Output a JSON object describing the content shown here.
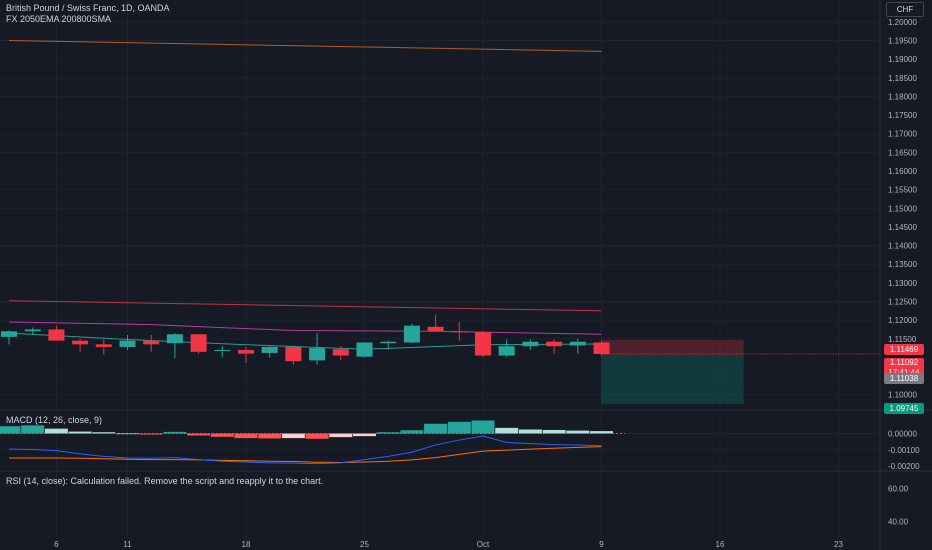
{
  "header": {
    "title": "British Pound / Swiss Franc, 1D, OANDA",
    "indicators": "FX 2050EMA 200800SMA",
    "currency": "CHF"
  },
  "panes": {
    "macd_label": "MACD (12, 26, close, 9)",
    "rsi_label": "RSI (14, close): Calculation failed. Remove the script and reapply it to the chart."
  },
  "price_tags": {
    "upper": "1.11469",
    "last": "1.11092",
    "countdown": "17:41:44",
    "lower": "1.11038",
    "target": "1.09745"
  },
  "colors": {
    "background": "#161a25",
    "up": "#26a69a",
    "down": "#f23645",
    "ema_slow": "#b25e1e",
    "ma_red": "#c2344a",
    "ma_pink": "#b23ea0",
    "ma_teal": "#2a9d95",
    "macd_line": "#2962ff",
    "signal_line": "#ff6d00",
    "hist_up_strong": "#26a69a",
    "hist_up_weak": "#b2dfdb",
    "hist_down_strong": "#ff5252",
    "hist_down_weak": "#ffcdd2"
  },
  "chart_data": {
    "type": "candlestick",
    "title": "British Pound / Swiss Franc, 1D, OANDA",
    "ylim": [
      1.0975,
      1.2005
    ],
    "y_ticks": [
      "1.20000",
      "1.19500",
      "1.19000",
      "1.18500",
      "1.18000",
      "1.17500",
      "1.17000",
      "1.16500",
      "1.16000",
      "1.15500",
      "1.15000",
      "1.14500",
      "1.14000",
      "1.13500",
      "1.13000",
      "1.12500",
      "1.12000",
      "1.11500",
      "1.10500",
      "1.10000"
    ],
    "x_ticks": [
      "6",
      "11",
      "18",
      "25",
      "Oct",
      "9",
      "16",
      "23"
    ],
    "x_tick_index": [
      2,
      5,
      10,
      15,
      20,
      25,
      30,
      35
    ],
    "x_range": [
      0,
      36
    ],
    "candles": [
      {
        "i": 0,
        "o": 1.1155,
        "h": 1.1172,
        "l": 1.1135,
        "c": 1.117
      },
      {
        "i": 1,
        "o": 1.117,
        "h": 1.118,
        "l": 1.116,
        "c": 1.1175
      },
      {
        "i": 2,
        "o": 1.1175,
        "h": 1.1185,
        "l": 1.1148,
        "c": 1.1145
      },
      {
        "i": 3,
        "o": 1.1145,
        "h": 1.115,
        "l": 1.1115,
        "c": 1.1135
      },
      {
        "i": 4,
        "o": 1.1135,
        "h": 1.1148,
        "l": 1.1108,
        "c": 1.1128
      },
      {
        "i": 5,
        "o": 1.1128,
        "h": 1.116,
        "l": 1.112,
        "c": 1.1145
      },
      {
        "i": 6,
        "o": 1.1145,
        "h": 1.116,
        "l": 1.1115,
        "c": 1.1135
      },
      {
        "i": 7,
        "o": 1.1138,
        "h": 1.1165,
        "l": 1.1098,
        "c": 1.1162
      },
      {
        "i": 8,
        "o": 1.1162,
        "h": 1.1163,
        "l": 1.111,
        "c": 1.1115
      },
      {
        "i": 9,
        "o": 1.1118,
        "h": 1.113,
        "l": 1.11,
        "c": 1.112
      },
      {
        "i": 10,
        "o": 1.112,
        "h": 1.1128,
        "l": 1.1085,
        "c": 1.111
      },
      {
        "i": 11,
        "o": 1.1112,
        "h": 1.113,
        "l": 1.11,
        "c": 1.1128
      },
      {
        "i": 12,
        "o": 1.1128,
        "h": 1.1132,
        "l": 1.108,
        "c": 1.109
      },
      {
        "i": 13,
        "o": 1.1092,
        "h": 1.1165,
        "l": 1.108,
        "c": 1.1125
      },
      {
        "i": 14,
        "o": 1.1122,
        "h": 1.113,
        "l": 1.1092,
        "c": 1.1105
      },
      {
        "i": 15,
        "o": 1.1102,
        "h": 1.114,
        "l": 1.11,
        "c": 1.114
      },
      {
        "i": 16,
        "o": 1.1138,
        "h": 1.1145,
        "l": 1.112,
        "c": 1.1142
      },
      {
        "i": 17,
        "o": 1.114,
        "h": 1.119,
        "l": 1.1138,
        "c": 1.1185
      },
      {
        "i": 18,
        "o": 1.1182,
        "h": 1.1215,
        "l": 1.1168,
        "c": 1.117
      },
      {
        "i": 19,
        "o": 1.117,
        "h": 1.1195,
        "l": 1.1145,
        "c": 1.1168
      },
      {
        "i": 20,
        "o": 1.1168,
        "h": 1.117,
        "l": 1.11,
        "c": 1.1105
      },
      {
        "i": 21,
        "o": 1.1105,
        "h": 1.1148,
        "l": 1.11,
        "c": 1.113
      },
      {
        "i": 22,
        "o": 1.113,
        "h": 1.1148,
        "l": 1.112,
        "c": 1.1142
      },
      {
        "i": 23,
        "o": 1.1142,
        "h": 1.1148,
        "l": 1.111,
        "c": 1.113
      },
      {
        "i": 24,
        "o": 1.1132,
        "h": 1.115,
        "l": 1.111,
        "c": 1.1142
      },
      {
        "i": 25,
        "o": 1.114,
        "h": 1.1145,
        "l": 1.1104,
        "c": 1.1109
      }
    ],
    "lines": [
      {
        "name": "ema-slow",
        "color": "#b25e1e",
        "points": [
          [
            0,
            1.195
          ],
          [
            25,
            1.1921
          ]
        ]
      },
      {
        "name": "ma-red",
        "color": "#c2344a",
        "points": [
          [
            0,
            1.1252
          ],
          [
            25,
            1.1225
          ]
        ]
      },
      {
        "name": "ma-pink",
        "color": "#b23ea0",
        "points": [
          [
            0,
            1.1195
          ],
          [
            6,
            1.1188
          ],
          [
            12,
            1.1172
          ],
          [
            18,
            1.117
          ],
          [
            25,
            1.1162
          ]
        ]
      },
      {
        "name": "ma-teal",
        "color": "#2a9d95",
        "points": [
          [
            0,
            1.1165
          ],
          [
            5,
            1.1148
          ],
          [
            10,
            1.1134
          ],
          [
            15,
            1.1122
          ],
          [
            20,
            1.1134
          ],
          [
            25,
            1.1136
          ]
        ]
      }
    ],
    "position_box": {
      "x_start": 25,
      "x_end": 31,
      "entry": 1.11038,
      "stop": 1.11469,
      "target": 1.09745
    },
    "macd": {
      "ylim": [
        -0.0023,
        0.0012
      ],
      "y_ticks": [
        "0.00000",
        "-0.00100",
        "-0.00200"
      ],
      "histogram": [
        0.00045,
        0.0005,
        0.0003,
        0.00012,
        8e-05,
        2e-05,
        -5e-05,
        0.0001,
        -0.00012,
        -0.0002,
        -0.00028,
        -0.0003,
        -0.00028,
        -0.00032,
        -0.00022,
        -0.00016,
        8e-05,
        0.0002,
        0.0006,
        0.00072,
        0.0008,
        0.00035,
        0.00025,
        0.00022,
        0.00018,
        0.00015
      ],
      "macd_line": [
        -0.00095,
        -0.00098,
        -0.00105,
        -0.00125,
        -0.0014,
        -0.0015,
        -0.00152,
        -0.00148,
        -0.0016,
        -0.0017,
        -0.00175,
        -0.0018,
        -0.00182,
        -0.00185,
        -0.0018,
        -0.0016,
        -0.0014,
        -0.00115,
        -0.0007,
        -0.0004,
        -0.00015,
        -0.00055,
        -0.00062,
        -0.00068,
        -0.0007,
        -0.00075
      ],
      "signal_line": [
        -0.0015,
        -0.0015,
        -0.0015,
        -0.00152,
        -0.00155,
        -0.00158,
        -0.0016,
        -0.0016,
        -0.00162,
        -0.00165,
        -0.00167,
        -0.0017,
        -0.00172,
        -0.00176,
        -0.00178,
        -0.00175,
        -0.0017,
        -0.00162,
        -0.00148,
        -0.00128,
        -0.00108,
        -0.00102,
        -0.00096,
        -0.0009,
        -0.00085,
        -0.0008
      ]
    },
    "rsi": {
      "y_ticks": [
        "60.00",
        "40.00"
      ],
      "ylim": [
        30,
        70
      ]
    }
  }
}
